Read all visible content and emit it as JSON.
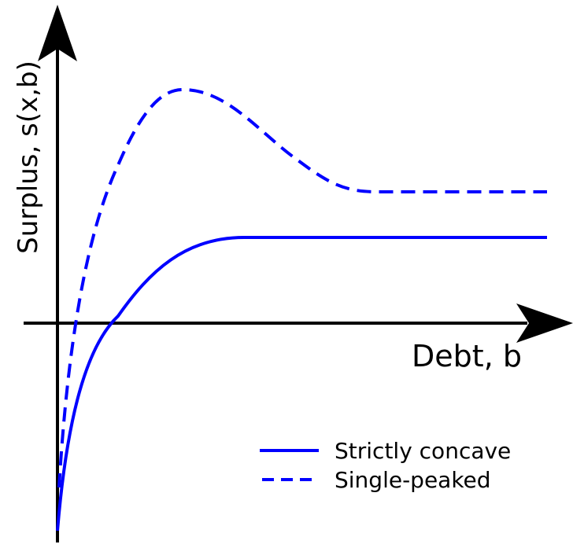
{
  "axes": {
    "y_label": "Surplus, s(x,b)",
    "x_label": "Debt, b"
  },
  "legend": [
    {
      "label": "Strictly concave"
    },
    {
      "label": "Single-peaked"
    }
  ]
}
